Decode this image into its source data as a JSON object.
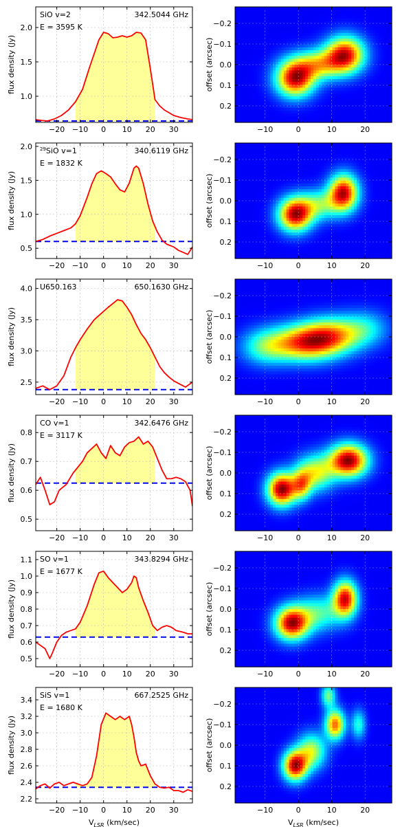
{
  "chart_data": [
    {
      "type": "line",
      "panel": "spectrum",
      "line_name": "SiO v=2",
      "isotope_sup": "",
      "energy": "E = 3595 K",
      "frequency": "342.5044 GHz",
      "ylabel": "flux density (Jy)",
      "xlabel": "",
      "xlim": [
        -29,
        38
      ],
      "ylim": [
        0.62,
        2.3
      ],
      "yticks": [
        1.0,
        1.5,
        2.0
      ],
      "yticklabels": [
        "1.0",
        "1.5",
        "2.0"
      ],
      "xticks": [
        -20,
        -10,
        0,
        10,
        20,
        30
      ],
      "xticklabels": [
        "−20",
        "−10",
        "0",
        "10",
        "20",
        "30"
      ],
      "baseline": 0.64,
      "fill_range": [
        -12,
        22
      ],
      "x": [
        -29,
        -27,
        -24,
        -21,
        -18,
        -15,
        -12,
        -9,
        -6,
        -4,
        -2,
        0,
        2,
        4,
        6,
        8,
        10,
        12,
        14,
        16,
        18,
        20,
        22,
        24,
        26,
        28,
        30,
        33,
        36,
        38
      ],
      "y": [
        0.66,
        0.65,
        0.64,
        0.67,
        0.72,
        0.8,
        0.92,
        1.1,
        1.42,
        1.62,
        1.82,
        1.93,
        1.91,
        1.85,
        1.86,
        1.88,
        1.86,
        1.88,
        1.93,
        1.92,
        1.82,
        1.4,
        0.95,
        0.86,
        0.8,
        0.76,
        0.72,
        0.69,
        0.67,
        0.66
      ]
    },
    {
      "type": "heatmap",
      "panel": "pv",
      "ylabel": "offset (arcsec)",
      "xlabel": "",
      "xlim": [
        -19,
        28
      ],
      "ylim": [
        0.28,
        -0.28
      ],
      "xticks": [
        -10,
        0,
        10,
        20
      ],
      "xticklabels": [
        "−10",
        "0",
        "10",
        "20"
      ],
      "yticks": [
        -0.2,
        -0.1,
        0.0,
        0.1,
        0.2
      ],
      "yticklabels": [
        "−0.2",
        "−0.1",
        "0.0",
        "0.1",
        "0.2"
      ],
      "peaks": [
        {
          "v": -1,
          "off": 0.07,
          "amp": 1.0,
          "sv": 4.0,
          "so": 0.06
        },
        {
          "v": 14,
          "off": -0.05,
          "amp": 0.95,
          "sv": 4.0,
          "so": 0.06
        },
        {
          "v": 6,
          "off": 0.0,
          "amp": 0.6,
          "sv": 5.5,
          "so": 0.05
        }
      ]
    },
    {
      "type": "line",
      "panel": "spectrum",
      "line_name": "SiO v=1",
      "isotope_sup": "29",
      "energy": "E = 1832 K",
      "frequency": "340.6119 GHz",
      "ylabel": "flux density (Jy)",
      "xlabel": "",
      "xlim": [
        -29,
        38
      ],
      "ylim": [
        0.35,
        2.05
      ],
      "yticks": [
        0.5,
        1.0,
        1.5,
        2.0
      ],
      "yticklabels": [
        "0.5",
        "1.0",
        "1.5",
        "2.0"
      ],
      "xticks": [
        -20,
        -10,
        0,
        10,
        20,
        30
      ],
      "xticklabels": [
        "−20",
        "−10",
        "0",
        "10",
        "20",
        "30"
      ],
      "baseline": 0.6,
      "fill_range": [
        -12,
        22
      ],
      "x": [
        -29,
        -26,
        -23,
        -20,
        -17,
        -14,
        -12,
        -10,
        -7,
        -5,
        -3,
        -1,
        1,
        3,
        5,
        7,
        9,
        11,
        13,
        14,
        15,
        17,
        19,
        21,
        23,
        25,
        27,
        30,
        32,
        34,
        36,
        38
      ],
      "y": [
        0.6,
        0.63,
        0.68,
        0.72,
        0.76,
        0.8,
        0.86,
        0.98,
        1.25,
        1.45,
        1.6,
        1.64,
        1.6,
        1.55,
        1.45,
        1.36,
        1.33,
        1.46,
        1.68,
        1.71,
        1.68,
        1.45,
        1.15,
        0.9,
        0.74,
        0.62,
        0.56,
        0.52,
        0.47,
        0.44,
        0.41,
        0.52
      ]
    },
    {
      "type": "heatmap",
      "panel": "pv",
      "ylabel": "offset (arcsec)",
      "xlabel": "",
      "xlim": [
        -19,
        28
      ],
      "ylim": [
        0.28,
        -0.28
      ],
      "xticks": [
        -10,
        0,
        10,
        20
      ],
      "xticklabels": [
        "−10",
        "0",
        "10",
        "20"
      ],
      "yticks": [
        -0.2,
        -0.1,
        0.0,
        0.1,
        0.2
      ],
      "yticklabels": [
        "−0.2",
        "−0.1",
        "0.0",
        "0.1",
        "0.2"
      ],
      "peaks": [
        {
          "v": -1,
          "off": 0.07,
          "amp": 1.0,
          "sv": 3.5,
          "so": 0.055
        },
        {
          "v": 13.5,
          "off": -0.04,
          "amp": 1.0,
          "sv": 3.0,
          "so": 0.06
        },
        {
          "v": 6,
          "off": 0.02,
          "amp": 0.45,
          "sv": 5.0,
          "so": 0.05
        }
      ]
    },
    {
      "type": "line",
      "panel": "spectrum",
      "line_name": "U650.163",
      "isotope_sup": "",
      "energy": "",
      "frequency": "650.1630 GHz",
      "ylabel": "flux density (Jy)",
      "xlabel": "",
      "xlim": [
        -29,
        38
      ],
      "ylim": [
        2.3,
        4.15
      ],
      "yticks": [
        2.5,
        3.0,
        3.5,
        4.0
      ],
      "yticklabels": [
        "2.5",
        "3.0",
        "3.5",
        "4.0"
      ],
      "xticks": [
        -20,
        -10,
        0,
        10,
        20,
        30
      ],
      "xticklabels": [
        "−20",
        "−10",
        "0",
        "10",
        "20",
        "30"
      ],
      "baseline": 2.38,
      "fill_range": [
        -12,
        22
      ],
      "x": [
        -29,
        -26,
        -23,
        -20,
        -17,
        -14,
        -12,
        -10,
        -7,
        -4,
        -1,
        2,
        4,
        6,
        8,
        10,
        12,
        14,
        16,
        18,
        20,
        22,
        24,
        26,
        28,
        30,
        32,
        35,
        38
      ],
      "y": [
        2.4,
        2.44,
        2.38,
        2.44,
        2.6,
        2.9,
        3.05,
        3.18,
        3.35,
        3.5,
        3.6,
        3.7,
        3.76,
        3.82,
        3.8,
        3.7,
        3.58,
        3.42,
        3.28,
        3.18,
        3.05,
        2.9,
        2.75,
        2.65,
        2.58,
        2.52,
        2.48,
        2.42,
        2.5
      ]
    },
    {
      "type": "heatmap",
      "panel": "pv",
      "ylabel": "offset (arcsec)",
      "xlabel": "",
      "xlim": [
        -19,
        28
      ],
      "ylim": [
        0.28,
        -0.28
      ],
      "xticks": [
        -10,
        0,
        10,
        20
      ],
      "xticklabels": [
        "−10",
        "0",
        "10",
        "20"
      ],
      "yticks": [
        -0.2,
        -0.1,
        0.0,
        0.1,
        0.2
      ],
      "yticklabels": [
        "−0.2",
        "−0.1",
        "0.0",
        "0.1",
        "0.2"
      ],
      "peaks": [
        {
          "v": 2,
          "off": 0.03,
          "amp": 1.0,
          "sv": 7.0,
          "so": 0.06
        },
        {
          "v": 10,
          "off": -0.01,
          "amp": 0.7,
          "sv": 6.0,
          "so": 0.06
        },
        {
          "v": -10,
          "off": 0.05,
          "amp": 0.45,
          "sv": 5.0,
          "so": 0.06
        },
        {
          "v": 20,
          "off": -0.04,
          "amp": 0.35,
          "sv": 5.0,
          "so": 0.06
        }
      ]
    },
    {
      "type": "line",
      "panel": "spectrum",
      "line_name": "CO v=1",
      "isotope_sup": "",
      "energy": "E = 3117 K",
      "frequency": "342.6476 GHz",
      "ylabel": "flux density (Jy)",
      "xlabel": "",
      "xlim": [
        -29,
        38
      ],
      "ylim": [
        0.46,
        0.86
      ],
      "yticks": [
        0.5,
        0.6,
        0.7,
        0.8
      ],
      "yticklabels": [
        "0.5",
        "0.6",
        "0.7",
        "0.8"
      ],
      "xticks": [
        -20,
        -10,
        0,
        10,
        20,
        30
      ],
      "xticklabels": [
        "−20",
        "−10",
        "0",
        "10",
        "20",
        "30"
      ],
      "baseline": 0.625,
      "fill_range": [
        -12,
        22
      ],
      "x": [
        -29,
        -27,
        -25,
        -23,
        -21,
        -19,
        -16,
        -13,
        -11,
        -9,
        -7,
        -5,
        -3,
        -1,
        1,
        3,
        5,
        7,
        9,
        11,
        13,
        15,
        17,
        19,
        21,
        23,
        25,
        27,
        29,
        31,
        33,
        35,
        37,
        38
      ],
      "y": [
        0.62,
        0.645,
        0.6,
        0.55,
        0.56,
        0.6,
        0.62,
        0.66,
        0.68,
        0.7,
        0.73,
        0.745,
        0.76,
        0.73,
        0.71,
        0.755,
        0.73,
        0.72,
        0.75,
        0.765,
        0.77,
        0.785,
        0.76,
        0.77,
        0.75,
        0.71,
        0.67,
        0.64,
        0.64,
        0.645,
        0.64,
        0.63,
        0.6,
        0.545
      ]
    },
    {
      "type": "heatmap",
      "panel": "pv",
      "ylabel": "offset (arcsec)",
      "xlabel": "",
      "xlim": [
        -19,
        28
      ],
      "ylim": [
        0.28,
        -0.28
      ],
      "xticks": [
        -10,
        0,
        10,
        20
      ],
      "xticklabels": [
        "−10",
        "0",
        "10",
        "20"
      ],
      "yticks": [
        -0.2,
        -0.1,
        0.0,
        0.1,
        0.2
      ],
      "yticklabels": [
        "−0.2",
        "−0.1",
        "0.0",
        "0.1",
        "0.2"
      ],
      "peaks": [
        {
          "v": -5,
          "off": 0.08,
          "amp": 1.0,
          "sv": 3.0,
          "so": 0.055
        },
        {
          "v": 15,
          "off": -0.06,
          "amp": 1.0,
          "sv": 4.0,
          "so": 0.055
        },
        {
          "v": 5,
          "off": 0.0,
          "amp": 0.55,
          "sv": 4.0,
          "so": 0.06
        },
        {
          "v": 1,
          "off": 0.06,
          "amp": 0.5,
          "sv": 2.0,
          "so": 0.05
        }
      ]
    },
    {
      "type": "line",
      "panel": "spectrum",
      "line_name": "SO v=1",
      "isotope_sup": "",
      "energy": "E = 1677 K",
      "frequency": "343.8294 GHz",
      "ylabel": "flux density (Jy)",
      "xlabel": "",
      "xlim": [
        -29,
        38
      ],
      "ylim": [
        0.45,
        1.15
      ],
      "yticks": [
        0.5,
        0.6,
        0.7,
        0.8,
        0.9,
        1.0,
        1.1
      ],
      "yticklabels": [
        "0.5",
        "0.6",
        "0.7",
        "0.8",
        "0.9",
        "1.0",
        "1.1"
      ],
      "xticks": [
        -20,
        -10,
        0,
        10,
        20,
        30
      ],
      "xticklabels": [
        "−20",
        "−10",
        "0",
        "10",
        "20",
        "30"
      ],
      "baseline": 0.63,
      "fill_range": [
        -12,
        22
      ],
      "x": [
        -29,
        -27,
        -25,
        -23,
        -22,
        -20,
        -18,
        -16,
        -14,
        -12,
        -10,
        -7,
        -4,
        -2,
        0,
        2,
        4,
        6,
        8,
        10,
        12,
        13,
        14,
        15,
        17,
        19,
        21,
        23,
        25,
        27,
        29,
        31,
        34,
        36,
        38
      ],
      "y": [
        0.6,
        0.58,
        0.56,
        0.5,
        0.53,
        0.6,
        0.64,
        0.66,
        0.67,
        0.68,
        0.72,
        0.82,
        0.95,
        1.02,
        1.03,
        0.99,
        0.96,
        0.93,
        0.9,
        0.92,
        0.96,
        1.0,
        0.99,
        0.93,
        0.85,
        0.78,
        0.7,
        0.67,
        0.69,
        0.7,
        0.69,
        0.67,
        0.66,
        0.65,
        0.65
      ]
    },
    {
      "type": "heatmap",
      "panel": "pv",
      "ylabel": "offset (arcsec)",
      "xlabel": "",
      "xlim": [
        -19,
        28
      ],
      "ylim": [
        0.28,
        -0.28
      ],
      "xticks": [
        -10,
        0,
        10,
        20
      ],
      "xticklabels": [
        "−10",
        "0",
        "10",
        "20"
      ],
      "yticks": [
        -0.2,
        -0.1,
        0.0,
        0.1,
        0.2
      ],
      "yticklabels": [
        "−0.2",
        "−0.1",
        "0.0",
        "0.1",
        "0.2"
      ],
      "peaks": [
        {
          "v": -2,
          "off": 0.07,
          "amp": 1.0,
          "sv": 3.5,
          "so": 0.055
        },
        {
          "v": 14,
          "off": -0.05,
          "amp": 0.95,
          "sv": 2.5,
          "so": 0.06
        },
        {
          "v": 6,
          "off": 0.02,
          "amp": 0.4,
          "sv": 5.0,
          "so": 0.06
        }
      ]
    },
    {
      "type": "line",
      "panel": "spectrum",
      "line_name": "SiS v=1",
      "isotope_sup": "",
      "energy": "E = 1680 K",
      "frequency": "667.2525 GHz",
      "ylabel": "flux density (Jy)",
      "xlabel": "V_LSR (km/sec)",
      "xlim": [
        -29,
        38
      ],
      "ylim": [
        2.15,
        3.55
      ],
      "yticks": [
        2.2,
        2.4,
        2.6,
        2.8,
        3.0,
        3.2,
        3.4
      ],
      "yticklabels": [
        "2.2",
        "2.4",
        "2.6",
        "2.8",
        "3.0",
        "3.2",
        "3.4"
      ],
      "xticks": [
        -20,
        -10,
        0,
        10,
        20,
        30
      ],
      "xticklabels": [
        "−20",
        "−10",
        "0",
        "10",
        "20",
        "30"
      ],
      "baseline": 2.34,
      "fill_range": [
        -12,
        22
      ],
      "x": [
        -29,
        -27,
        -25,
        -23,
        -21,
        -19,
        -17,
        -15,
        -13,
        -11,
        -9,
        -7,
        -5,
        -3,
        -1,
        1,
        3,
        5,
        7,
        9,
        11,
        12,
        13,
        14,
        15,
        16,
        18,
        20,
        22,
        24,
        26,
        28,
        30,
        32,
        34,
        36,
        38
      ],
      "y": [
        2.32,
        2.36,
        2.38,
        2.33,
        2.38,
        2.4,
        2.36,
        2.38,
        2.4,
        2.38,
        2.36,
        2.38,
        2.46,
        2.72,
        3.1,
        3.24,
        3.2,
        3.16,
        3.2,
        3.16,
        3.2,
        3.1,
        2.95,
        2.76,
        2.66,
        2.6,
        2.62,
        2.48,
        2.38,
        2.34,
        2.33,
        2.34,
        2.3,
        2.3,
        2.28,
        2.31,
        2.29
      ]
    },
    {
      "type": "heatmap",
      "panel": "pv",
      "ylabel": "offset (arcsec)",
      "xlabel": "V_LSR (km/sec)",
      "xlim": [
        -19,
        28
      ],
      "ylim": [
        0.28,
        -0.28
      ],
      "xticks": [
        -10,
        0,
        10,
        20
      ],
      "xticklabels": [
        "−10",
        "0",
        "10",
        "20"
      ],
      "yticks": [
        -0.2,
        -0.1,
        0.0,
        0.1,
        0.2
      ],
      "yticklabels": [
        "−0.2",
        "−0.1",
        "0.0",
        "0.1",
        "0.2"
      ],
      "peaks": [
        {
          "v": -1,
          "off": 0.1,
          "amp": 1.0,
          "sv": 2.5,
          "so": 0.05
        },
        {
          "v": 11,
          "off": -0.1,
          "amp": 0.8,
          "sv": 2.0,
          "so": 0.05
        },
        {
          "v": 4,
          "off": 0.03,
          "amp": 0.55,
          "sv": 3.0,
          "so": 0.06
        },
        {
          "v": 18,
          "off": -0.1,
          "amp": 0.35,
          "sv": 1.5,
          "so": 0.05
        },
        {
          "v": 9,
          "off": -0.24,
          "amp": 0.45,
          "sv": 1.5,
          "so": 0.04
        }
      ]
    }
  ],
  "colors": {
    "spectrum_line": "#ff0000",
    "fill": "#ffff99",
    "baseline": "#0000ee",
    "grid": "#bbbbbb",
    "colormap": "jet"
  }
}
